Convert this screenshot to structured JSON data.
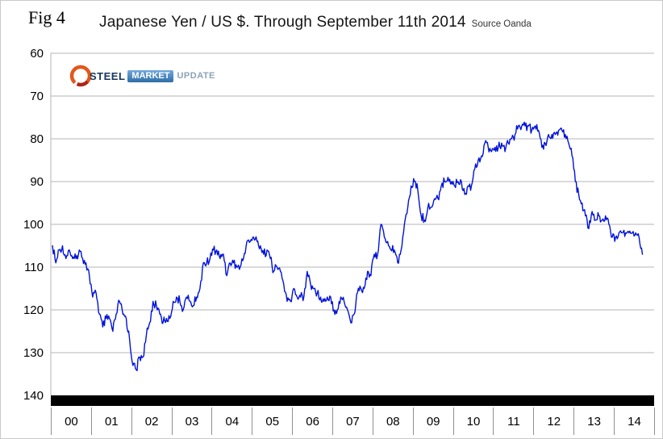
{
  "figure_label": "Fig 4",
  "header": {
    "title": "Japanese Yen / US $. Through September 11th 2014",
    "source": "Source Oanda"
  },
  "logo": {
    "steel": "STEEL",
    "market": "MARKET",
    "update": "UPDATE"
  },
  "chart_data": {
    "type": "line",
    "title": "Japanese Yen / US $. Through September 11th 2014",
    "source": "Oanda",
    "ylabel": "Japanese Yen per US Dollar",
    "y_inverted": true,
    "ylim": [
      60,
      140
    ],
    "y_ticks": [
      60,
      70,
      80,
      90,
      100,
      110,
      120,
      130,
      140
    ],
    "x_tick_labels": [
      "00",
      "01",
      "02",
      "03",
      "04",
      "05",
      "06",
      "07",
      "08",
      "09",
      "10",
      "11",
      "12",
      "13",
      "14"
    ],
    "x_start": "2000-01",
    "x_end": "2014-09",
    "frequency": "monthly",
    "grid": "horizontal",
    "legend": "none",
    "line_color": "#0012d9",
    "series": [
      {
        "name": "JPY/USD",
        "values": [
          105,
          109,
          106,
          105,
          108,
          106,
          108,
          108,
          106,
          108,
          109,
          112,
          117,
          116,
          121,
          124,
          122,
          122,
          125,
          121,
          118,
          121,
          122,
          127,
          133,
          134,
          131,
          131,
          126,
          123,
          118,
          119,
          121,
          123,
          122,
          122,
          118,
          117,
          118,
          120,
          117,
          118,
          119,
          117,
          115,
          109,
          109,
          108,
          106,
          106,
          108,
          107,
          112,
          109,
          109,
          110,
          110,
          108,
          104,
          104,
          103,
          104,
          105,
          107,
          106,
          108,
          111,
          110,
          111,
          114,
          118,
          118,
          115,
          117,
          117,
          117,
          111,
          114,
          115,
          116,
          117,
          118,
          117,
          117,
          120,
          120,
          117,
          118,
          120,
          123,
          121,
          116,
          115,
          115,
          111,
          112,
          107,
          107,
          100,
          103,
          104,
          106,
          106,
          109,
          106,
          100,
          96,
          91,
          90,
          92,
          98,
          99,
          96,
          96,
          94,
          94,
          91,
          90,
          89,
          90,
          91,
          90,
          90,
          93,
          91,
          91,
          87,
          85,
          84,
          81,
          82,
          83,
          82,
          82,
          81,
          83,
          81,
          80,
          79,
          77,
          77,
          77,
          77,
          78,
          77,
          78,
          82,
          81,
          79,
          79,
          79,
          78,
          78,
          79,
          81,
          84,
          90,
          93,
          95,
          98,
          101,
          97,
          99,
          98,
          99,
          98,
          100,
          103,
          103,
          102,
          102,
          102,
          102,
          102,
          102,
          103,
          107
        ]
      }
    ]
  }
}
